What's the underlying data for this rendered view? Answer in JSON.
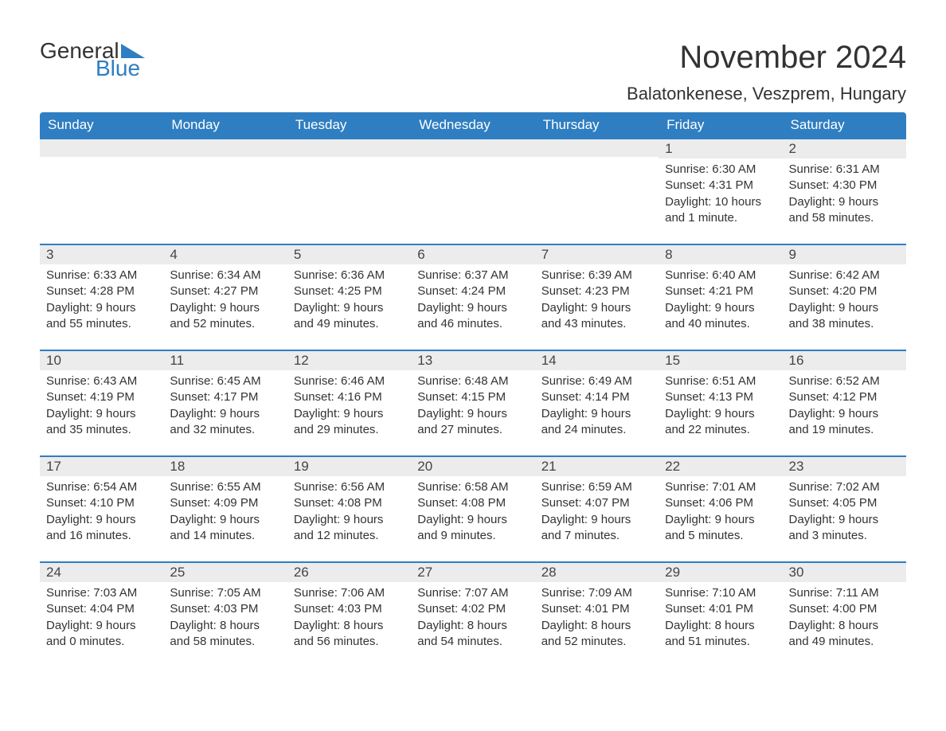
{
  "logo": {
    "text_general": "General",
    "text_blue": "Blue",
    "arrow_color": "#2f7ec2"
  },
  "title": "November 2024",
  "location": "Balatonkenese, Veszprem, Hungary",
  "colors": {
    "header_bg": "#2f7ec2",
    "header_text": "#ffffff",
    "daynum_bg": "#ececec",
    "border": "#2f7ec2",
    "text": "#333333",
    "background": "#ffffff"
  },
  "typography": {
    "title_fontsize": 40,
    "location_fontsize": 22,
    "header_fontsize": 17,
    "daynum_fontsize": 17,
    "body_fontsize": 15
  },
  "day_headers": [
    "Sunday",
    "Monday",
    "Tuesday",
    "Wednesday",
    "Thursday",
    "Friday",
    "Saturday"
  ],
  "weeks": [
    [
      null,
      null,
      null,
      null,
      null,
      {
        "day": "1",
        "sunrise": "Sunrise: 6:30 AM",
        "sunset": "Sunset: 4:31 PM",
        "daylight": "Daylight: 10 hours and 1 minute."
      },
      {
        "day": "2",
        "sunrise": "Sunrise: 6:31 AM",
        "sunset": "Sunset: 4:30 PM",
        "daylight": "Daylight: 9 hours and 58 minutes."
      }
    ],
    [
      {
        "day": "3",
        "sunrise": "Sunrise: 6:33 AM",
        "sunset": "Sunset: 4:28 PM",
        "daylight": "Daylight: 9 hours and 55 minutes."
      },
      {
        "day": "4",
        "sunrise": "Sunrise: 6:34 AM",
        "sunset": "Sunset: 4:27 PM",
        "daylight": "Daylight: 9 hours and 52 minutes."
      },
      {
        "day": "5",
        "sunrise": "Sunrise: 6:36 AM",
        "sunset": "Sunset: 4:25 PM",
        "daylight": "Daylight: 9 hours and 49 minutes."
      },
      {
        "day": "6",
        "sunrise": "Sunrise: 6:37 AM",
        "sunset": "Sunset: 4:24 PM",
        "daylight": "Daylight: 9 hours and 46 minutes."
      },
      {
        "day": "7",
        "sunrise": "Sunrise: 6:39 AM",
        "sunset": "Sunset: 4:23 PM",
        "daylight": "Daylight: 9 hours and 43 minutes."
      },
      {
        "day": "8",
        "sunrise": "Sunrise: 6:40 AM",
        "sunset": "Sunset: 4:21 PM",
        "daylight": "Daylight: 9 hours and 40 minutes."
      },
      {
        "day": "9",
        "sunrise": "Sunrise: 6:42 AM",
        "sunset": "Sunset: 4:20 PM",
        "daylight": "Daylight: 9 hours and 38 minutes."
      }
    ],
    [
      {
        "day": "10",
        "sunrise": "Sunrise: 6:43 AM",
        "sunset": "Sunset: 4:19 PM",
        "daylight": "Daylight: 9 hours and 35 minutes."
      },
      {
        "day": "11",
        "sunrise": "Sunrise: 6:45 AM",
        "sunset": "Sunset: 4:17 PM",
        "daylight": "Daylight: 9 hours and 32 minutes."
      },
      {
        "day": "12",
        "sunrise": "Sunrise: 6:46 AM",
        "sunset": "Sunset: 4:16 PM",
        "daylight": "Daylight: 9 hours and 29 minutes."
      },
      {
        "day": "13",
        "sunrise": "Sunrise: 6:48 AM",
        "sunset": "Sunset: 4:15 PM",
        "daylight": "Daylight: 9 hours and 27 minutes."
      },
      {
        "day": "14",
        "sunrise": "Sunrise: 6:49 AM",
        "sunset": "Sunset: 4:14 PM",
        "daylight": "Daylight: 9 hours and 24 minutes."
      },
      {
        "day": "15",
        "sunrise": "Sunrise: 6:51 AM",
        "sunset": "Sunset: 4:13 PM",
        "daylight": "Daylight: 9 hours and 22 minutes."
      },
      {
        "day": "16",
        "sunrise": "Sunrise: 6:52 AM",
        "sunset": "Sunset: 4:12 PM",
        "daylight": "Daylight: 9 hours and 19 minutes."
      }
    ],
    [
      {
        "day": "17",
        "sunrise": "Sunrise: 6:54 AM",
        "sunset": "Sunset: 4:10 PM",
        "daylight": "Daylight: 9 hours and 16 minutes."
      },
      {
        "day": "18",
        "sunrise": "Sunrise: 6:55 AM",
        "sunset": "Sunset: 4:09 PM",
        "daylight": "Daylight: 9 hours and 14 minutes."
      },
      {
        "day": "19",
        "sunrise": "Sunrise: 6:56 AM",
        "sunset": "Sunset: 4:08 PM",
        "daylight": "Daylight: 9 hours and 12 minutes."
      },
      {
        "day": "20",
        "sunrise": "Sunrise: 6:58 AM",
        "sunset": "Sunset: 4:08 PM",
        "daylight": "Daylight: 9 hours and 9 minutes."
      },
      {
        "day": "21",
        "sunrise": "Sunrise: 6:59 AM",
        "sunset": "Sunset: 4:07 PM",
        "daylight": "Daylight: 9 hours and 7 minutes."
      },
      {
        "day": "22",
        "sunrise": "Sunrise: 7:01 AM",
        "sunset": "Sunset: 4:06 PM",
        "daylight": "Daylight: 9 hours and 5 minutes."
      },
      {
        "day": "23",
        "sunrise": "Sunrise: 7:02 AM",
        "sunset": "Sunset: 4:05 PM",
        "daylight": "Daylight: 9 hours and 3 minutes."
      }
    ],
    [
      {
        "day": "24",
        "sunrise": "Sunrise: 7:03 AM",
        "sunset": "Sunset: 4:04 PM",
        "daylight": "Daylight: 9 hours and 0 minutes."
      },
      {
        "day": "25",
        "sunrise": "Sunrise: 7:05 AM",
        "sunset": "Sunset: 4:03 PM",
        "daylight": "Daylight: 8 hours and 58 minutes."
      },
      {
        "day": "26",
        "sunrise": "Sunrise: 7:06 AM",
        "sunset": "Sunset: 4:03 PM",
        "daylight": "Daylight: 8 hours and 56 minutes."
      },
      {
        "day": "27",
        "sunrise": "Sunrise: 7:07 AM",
        "sunset": "Sunset: 4:02 PM",
        "daylight": "Daylight: 8 hours and 54 minutes."
      },
      {
        "day": "28",
        "sunrise": "Sunrise: 7:09 AM",
        "sunset": "Sunset: 4:01 PM",
        "daylight": "Daylight: 8 hours and 52 minutes."
      },
      {
        "day": "29",
        "sunrise": "Sunrise: 7:10 AM",
        "sunset": "Sunset: 4:01 PM",
        "daylight": "Daylight: 8 hours and 51 minutes."
      },
      {
        "day": "30",
        "sunrise": "Sunrise: 7:11 AM",
        "sunset": "Sunset: 4:00 PM",
        "daylight": "Daylight: 8 hours and 49 minutes."
      }
    ]
  ]
}
